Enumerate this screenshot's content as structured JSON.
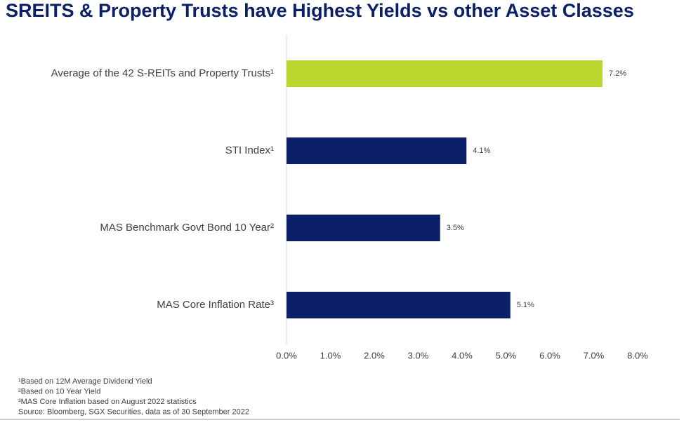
{
  "chart_data": {
    "type": "bar",
    "orientation": "horizontal",
    "title": "SREITS & Property Trusts have Highest Yields vs other Asset Classes",
    "categories": [
      "Average of the 42 S-REITs and Property Trusts¹",
      "STI Index¹",
      "MAS Benchmark Govt Bond 10 Year²",
      "MAS Core Inflation Rate³"
    ],
    "values": [
      7.2,
      4.1,
      3.5,
      5.1
    ],
    "value_labels": [
      "7.2%",
      "4.1%",
      "3.5%",
      "5.1%"
    ],
    "colors": [
      "#bed730",
      "#0c2068",
      "#0c2068",
      "#0c2068"
    ],
    "xlim": [
      0,
      8
    ],
    "xticks": [
      {
        "value": 0,
        "label": "0.0%"
      },
      {
        "value": 1,
        "label": "1.0%"
      },
      {
        "value": 2,
        "label": "2.0%"
      },
      {
        "value": 3,
        "label": "3.0%"
      },
      {
        "value": 4,
        "label": "4.0%"
      },
      {
        "value": 5,
        "label": "5.0%"
      },
      {
        "value": 6,
        "label": "6.0%"
      },
      {
        "value": 7,
        "label": "7.0%"
      },
      {
        "value": 8,
        "label": "8.0%"
      }
    ],
    "footnotes": [
      "¹Based on 12M Average Dividend Yield",
      "²Based on 10 Year Yield",
      "³MAS Core Inflation based on August 2022 statistics",
      "Source: Bloomberg, SGX Securities, data as of 30 September 2022"
    ]
  }
}
